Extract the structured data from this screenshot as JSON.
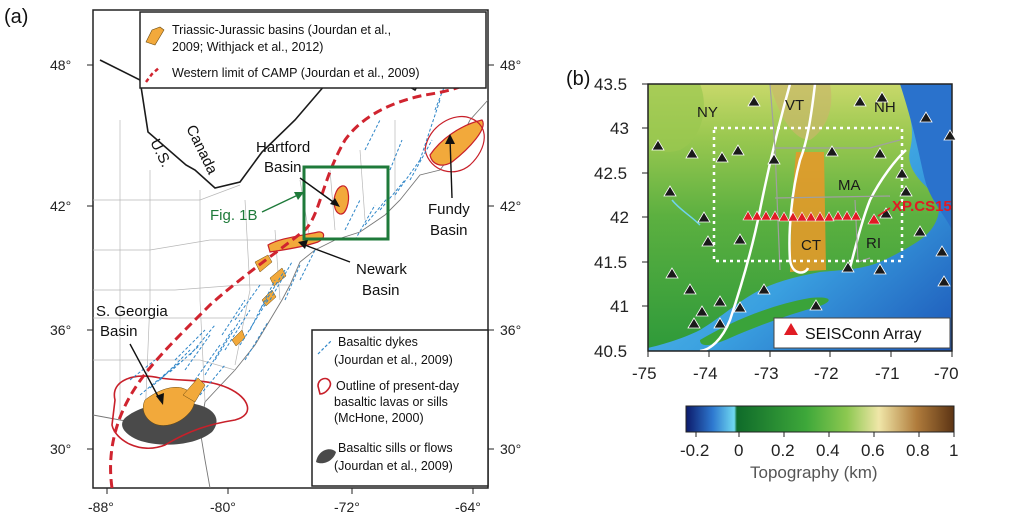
{
  "panel_a": {
    "label": "(a)",
    "lat_ticks": [
      "48°",
      "42°",
      "36°",
      "30°"
    ],
    "lat_ticks_right": [
      "48°",
      "42°",
      "36°",
      "30°"
    ],
    "lon_ticks": [
      "-88°",
      "-80°",
      "-72°",
      "-64°"
    ],
    "legend_top": {
      "basins_line1": "Triassic-Jurassic basins (Jourdan et al.,",
      "basins_line2": "2009; Withjack et al., 2012)",
      "camp": "Western limit of CAMP (Jourdan et al., 2009)"
    },
    "legend_bottom": {
      "dykes_line1": "Basaltic dykes",
      "dykes_line2": "(Jourdan et al., 2009)",
      "outline_line1": "Outline of present-day",
      "outline_line2": "basaltic lavas or sills",
      "outline_line3": "(McHone, 2000)",
      "sills_line1": "Basaltic sills or flows",
      "sills_line2": "(Jourdan et al., 2009)"
    },
    "labels": {
      "canada": "Canada",
      "us": "U.S.",
      "hartford_1": "Hartford",
      "hartford_2": "Basin",
      "fundy_1": "Fundy",
      "fundy_2": "Basin",
      "newark_1": "Newark",
      "newark_2": "Basin",
      "georgia_1": "S. Georgia",
      "georgia_2": "Basin",
      "fig1b": "Fig. 1B"
    },
    "colors": {
      "basin": "#f2a93b",
      "camp": "#d0242f",
      "dykes": "#2f86c8",
      "outline": "#c8202a",
      "sills": "#4a4a4a",
      "box": "#1e7a3a"
    }
  },
  "panel_b": {
    "label": "(b)",
    "lat_ticks": [
      "43.5",
      "43",
      "42.5",
      "42",
      "41.5",
      "41",
      "40.5"
    ],
    "lon_ticks": [
      "-75",
      "-74",
      "-73",
      "-72",
      "-71",
      "-70"
    ],
    "states": {
      "ny": "NY",
      "vt": "VT",
      "nh": "NH",
      "ma": "MA",
      "ct": "CT",
      "ri": "RI"
    },
    "station": "XP.CS15",
    "legend": "SEISConn Array",
    "colorbar": {
      "ticks": [
        "-0.2",
        "0",
        "0.2",
        "0.4",
        "0.6",
        "0.8",
        "1"
      ],
      "label": "Topography (km)"
    },
    "colors": {
      "array": "#e01b24",
      "station_label": "#e01b24",
      "station_other": "#1a1a1a"
    }
  }
}
